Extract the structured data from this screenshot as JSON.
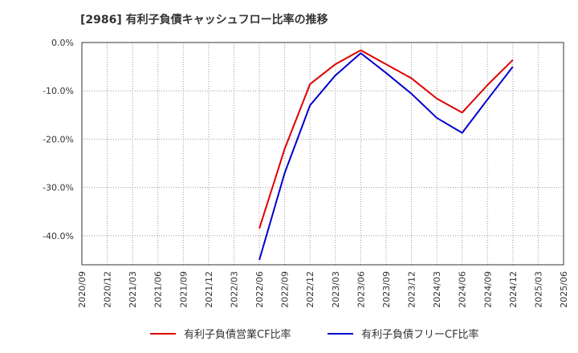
{
  "chart_data": {
    "type": "line",
    "title": "[2986]  有利子負債キャッシュフロー比率の推移",
    "x_categories": [
      "2020/09",
      "2020/12",
      "2021/03",
      "2021/06",
      "2021/09",
      "2021/12",
      "2022/03",
      "2022/06",
      "2022/09",
      "2022/12",
      "2023/03",
      "2023/06",
      "2023/09",
      "2023/12",
      "2024/03",
      "2024/06",
      "2024/09",
      "2024/12",
      "2025/03",
      "2025/06"
    ],
    "y_ticks": [
      0,
      -10,
      -20,
      -30,
      -40
    ],
    "y_tick_labels": [
      "0.0%",
      "-10.0%",
      "-20.0%",
      "-30.0%",
      "-40.0%"
    ],
    "ylim": [
      -46,
      0
    ],
    "grid": true,
    "legend_position": "bottom",
    "series": [
      {
        "name": "有利子負債営業CF比率",
        "color": "#dd0000",
        "values": [
          null,
          null,
          null,
          null,
          null,
          null,
          null,
          -38.5,
          -22.0,
          -8.6,
          -4.5,
          -1.6,
          -4.5,
          -7.4,
          -11.6,
          -14.5,
          -8.8,
          -3.6,
          null,
          null
        ]
      },
      {
        "name": "有利子負債フリーCF比率",
        "color": "#0000cc",
        "values": [
          null,
          null,
          null,
          null,
          null,
          null,
          null,
          -45.0,
          -27.0,
          -13.0,
          -6.8,
          -2.2,
          -6.3,
          -10.6,
          -15.6,
          -18.7,
          -11.8,
          -5.0,
          null,
          null
        ]
      }
    ]
  },
  "colors": {
    "axis": "#333333",
    "grid": "#999999",
    "text": "#333333"
  }
}
